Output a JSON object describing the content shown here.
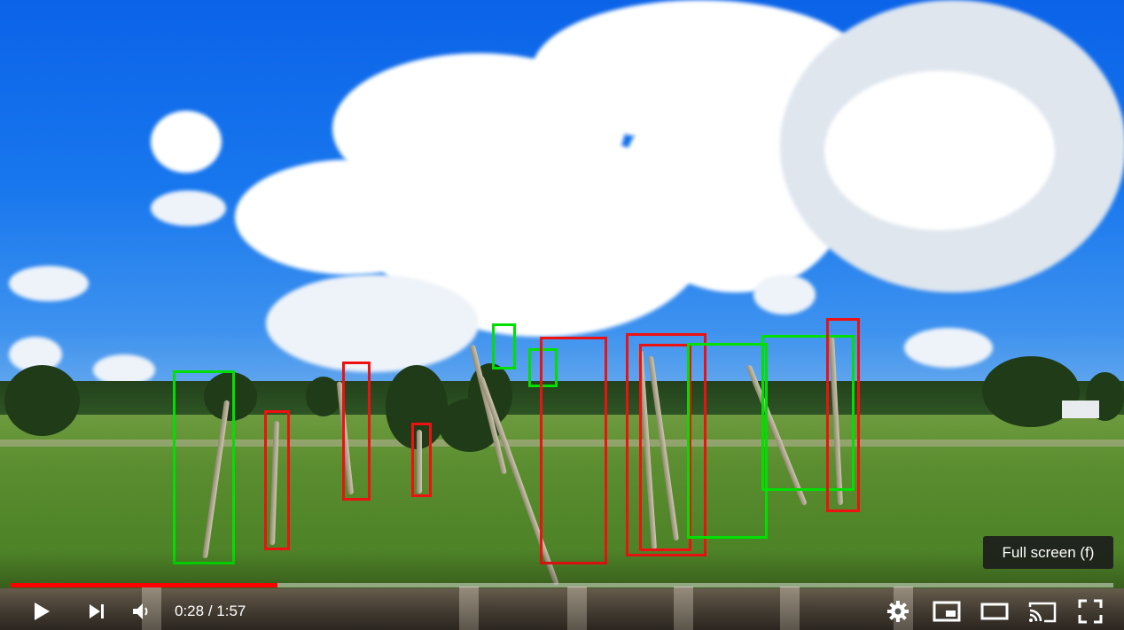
{
  "player": {
    "time_current": "0:28",
    "time_separator": " / ",
    "time_duration": "1:57",
    "progress_fraction": 0.242,
    "tooltip": "Full screen (f)"
  },
  "icons": {
    "play": "play-icon",
    "next": "next-icon",
    "volume": "volume-icon",
    "settings": "gear-icon",
    "miniplayer": "miniplayer-icon",
    "theater": "theater-mode-icon",
    "cast": "cast-icon",
    "fullscreen": "fullscreen-icon"
  },
  "colors": {
    "progress_played": "#ff0000",
    "box_green": "#00e000",
    "box_red": "#ee1111"
  }
}
